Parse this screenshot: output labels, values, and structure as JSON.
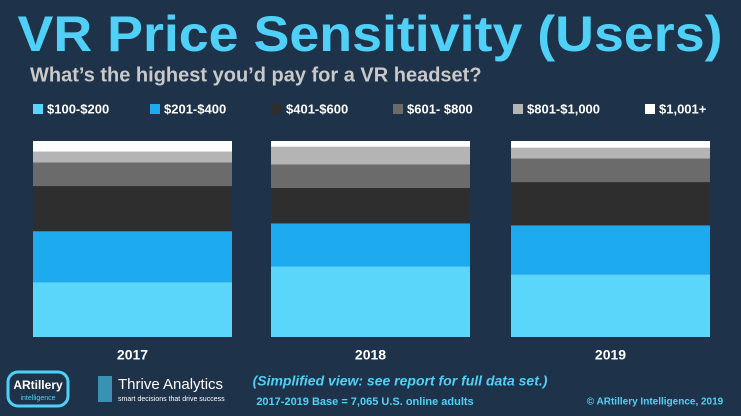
{
  "chart_data": {
    "type": "stacked-bar",
    "title": "VR Price Sensitivity (Users)",
    "subtitle": "What’s the highest you’d pay for a VR headset?",
    "categories": [
      "2017",
      "2018",
      "2019"
    ],
    "series": [
      {
        "name": "$100-$200",
        "color": "#5ad6fa",
        "values": [
          28,
          36,
          32
        ]
      },
      {
        "name": "$201-$400",
        "color": "#1eaaee",
        "values": [
          26,
          22,
          25
        ]
      },
      {
        "name": "$401-$600",
        "color": "#2e2e2e",
        "values": [
          23,
          18,
          22
        ]
      },
      {
        "name": "$601- $800",
        "color": "#6b6b6b",
        "values": [
          12,
          12,
          12
        ]
      },
      {
        "name": "$801-$1,000",
        "color": "#b4b4b4",
        "values": [
          5.5,
          9,
          5.5
        ]
      },
      {
        "name": "$1,001+",
        "color": "#ffffff",
        "values": [
          5.5,
          3,
          3.5
        ]
      }
    ],
    "note": "(Simplified view: see report for full data set.)",
    "base": "2017-2019 Base = 7,065 U.S. online adults",
    "copyright": "© ARtillery Intelligence, 2019"
  },
  "logos": {
    "artillery": "ARtillery",
    "artillery_sub": "intelligence",
    "thrive": "Thrive Analytics",
    "thrive_sub": "smart decisions that drive success"
  }
}
